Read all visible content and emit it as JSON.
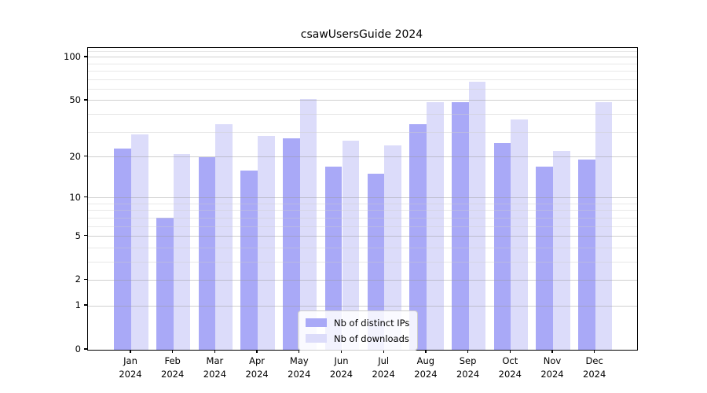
{
  "title": "csawUsersGuide 2024",
  "chart_data": {
    "type": "bar",
    "title": "csawUsersGuide 2024",
    "categories": [
      "Jan 2024",
      "Feb 2024",
      "Mar 2024",
      "Apr 2024",
      "May 2024",
      "Jun 2024",
      "Jul 2024",
      "Aug 2024",
      "Sep 2024",
      "Oct 2024",
      "Nov 2024",
      "Dec 2024"
    ],
    "series": [
      {
        "name": "Nb of distinct IPs",
        "color": "#a9a9f7",
        "values": [
          23,
          7,
          20,
          16,
          27,
          17,
          15,
          34,
          49,
          25,
          17,
          19
        ]
      },
      {
        "name": "Nb of downloads",
        "color": "#dcdcfa",
        "values": [
          29,
          21,
          34,
          28,
          51,
          26,
          24,
          49,
          68,
          37,
          22,
          49
        ]
      }
    ],
    "xlabel": "",
    "ylabel": "",
    "yscale": "log1p",
    "ylim": [
      0,
      115
    ],
    "y_ticks": [
      0,
      1,
      2,
      5,
      10,
      20,
      50,
      100
    ],
    "y_tick_labels": [
      "0",
      "1",
      "2",
      "5",
      "10",
      "20",
      "50",
      "100"
    ],
    "y_minor_gridlines": [
      3,
      4,
      6,
      7,
      8,
      9,
      30,
      40,
      60,
      70,
      80,
      90,
      110
    ],
    "grid": "horizontal on",
    "legend_position": "lower center"
  }
}
